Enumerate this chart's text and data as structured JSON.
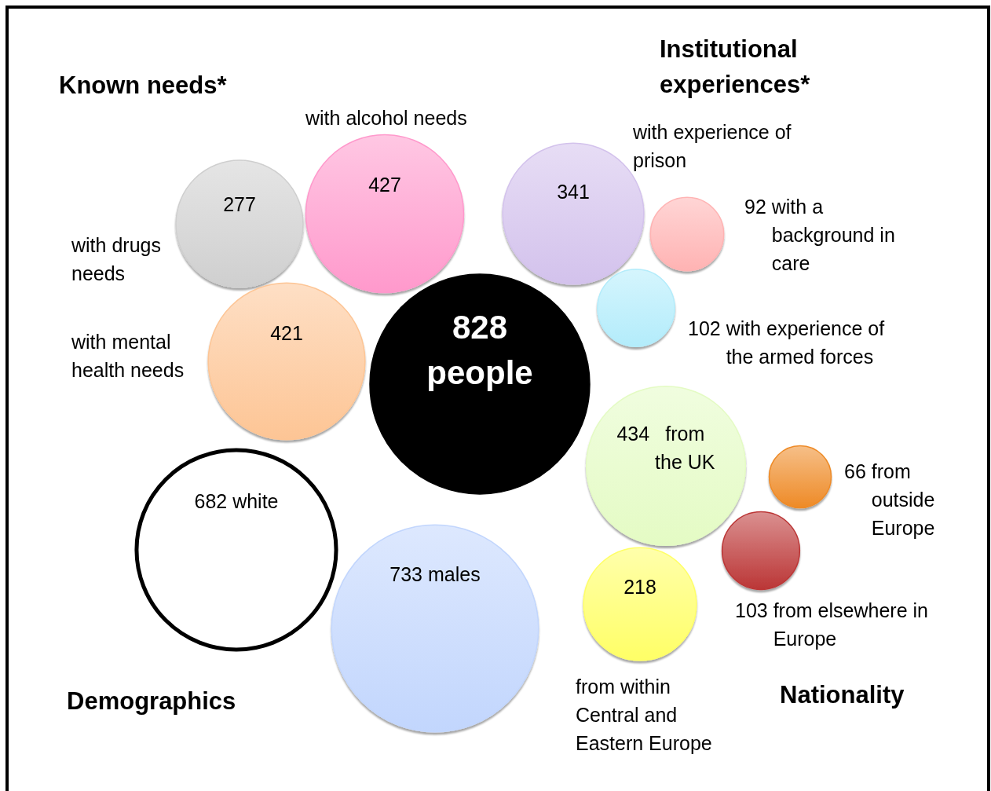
{
  "chart_data": {
    "type": "other",
    "categories": [
      "people",
      "with drugs needs",
      "with alcohol needs",
      "with mental health needs",
      "with experience of prison",
      "with a background in care",
      "with experience of the armed forces",
      "from the UK",
      "from outside Europe",
      "from elsewhere in Europe",
      "from within Central and Eastern Europe",
      "white",
      "males"
    ],
    "values": [
      828,
      277,
      427,
      421,
      341,
      92,
      102,
      434,
      66,
      103,
      218,
      682,
      733
    ],
    "colors": [
      "#000000",
      "#cfcfcf",
      "#ff99cc",
      "#fdc595",
      "#d3c2ec",
      "#ffb3b3",
      "#b3ecfb",
      "#e4fbc4",
      "#ee8a26",
      "#bb3636",
      "#ffff66",
      "#ffffff",
      "#c2d6fd"
    ],
    "data_labels": true,
    "annotations": [
      "Known needs*",
      "Institutional experiences*",
      "Demographics",
      "Nationality"
    ]
  }
}
